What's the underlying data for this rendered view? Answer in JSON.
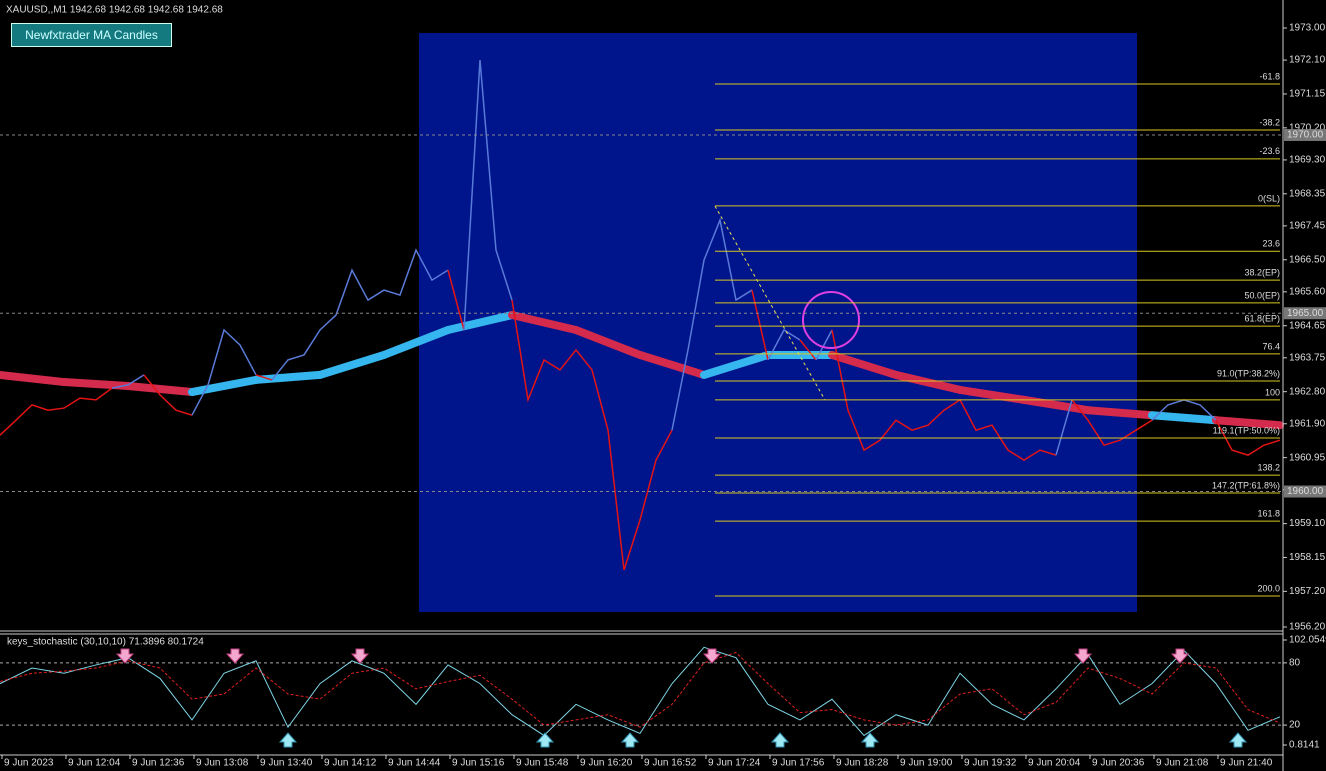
{
  "chart_data": [
    {
      "type": "line",
      "title": "XAUUSD,,M1  1942.68 1942.68 1942.68 1942.68",
      "indicator_button": "Newfxtrader MA Candles",
      "categories": [
        "9 Jun 2023",
        "9 Jun 12:04",
        "9 Jun 12:36",
        "9 Jun 13:08",
        "9 Jun 13:40",
        "9 Jun 14:12",
        "9 Jun 14:44",
        "9 Jun 15:16",
        "9 Jun 15:48",
        "9 Jun 16:20",
        "9 Jun 16:52",
        "9 Jun 17:24",
        "9 Jun 17:56",
        "9 Jun 18:28",
        "9 Jun 19:00",
        "9 Jun 19:32",
        "9 Jun 20:04",
        "9 Jun 20:36",
        "9 Jun 21:08",
        "9 Jun 21:40"
      ],
      "ylim": [
        1956.2,
        1973.0
      ],
      "yticks": [
        {
          "value": 1973.0,
          "label": "1973.00"
        },
        {
          "value": 1972.1,
          "label": "1972.10"
        },
        {
          "value": 1971.15,
          "label": "1971.15"
        },
        {
          "value": 1970.2,
          "label": "1970.20"
        },
        {
          "value": 1969.3,
          "label": "1969.30"
        },
        {
          "value": 1968.35,
          "label": "1968.35"
        },
        {
          "value": 1967.45,
          "label": "1967.45"
        },
        {
          "value": 1966.5,
          "label": "1966.50"
        },
        {
          "value": 1965.6,
          "label": "1965.60"
        },
        {
          "value": 1964.65,
          "label": "1964.65"
        },
        {
          "value": 1963.75,
          "label": "1963.75"
        },
        {
          "value": 1962.8,
          "label": "1962.80"
        },
        {
          "value": 1961.9,
          "label": "1961.90"
        },
        {
          "value": 1960.95,
          "label": "1960.95"
        },
        {
          "value": 1960.05,
          "label": "1960.05"
        },
        {
          "value": 1959.1,
          "label": "1959.10"
        },
        {
          "value": 1958.15,
          "label": "1958.15"
        },
        {
          "value": 1957.2,
          "label": "1957.20"
        },
        {
          "value": 1956.2,
          "label": "1956.20"
        }
      ],
      "price_lines": [
        {
          "value": 1970,
          "label": "1970.00"
        },
        {
          "value": 1965,
          "label": "1965.00"
        },
        {
          "value": 1960,
          "label": "1960.00"
        }
      ],
      "up_color": "#5a7ad8",
      "down_color": "#e41414",
      "ma_up_color": "#35b6ee",
      "ma_down_color": "#d42a4c",
      "price": [
        1961.58,
        1962.0,
        1962.43,
        1962.28,
        1962.34,
        1962.62,
        1962.57,
        1962.9,
        1962.99,
        1963.27,
        1962.71,
        1962.28,
        1962.14,
        1962.99,
        1964.53,
        1964.11,
        1963.27,
        1963.13,
        1963.69,
        1963.83,
        1964.53,
        1964.95,
        1966.21,
        1965.37,
        1965.65,
        1965.51,
        1966.77,
        1965.93,
        1966.21,
        1964.53,
        1972.1,
        1966.77,
        1965.37,
        1962.57,
        1963.69,
        1963.41,
        1963.97,
        1963.41,
        1961.72,
        1957.8,
        1959.2,
        1960.88,
        1961.72,
        1963.97,
        1966.49,
        1967.61,
        1965.37,
        1965.65,
        1963.69,
        1964.53,
        1964.25,
        1963.69,
        1964.53,
        1962.28,
        1961.16,
        1961.44,
        1962.0,
        1961.72,
        1961.86,
        1962.28,
        1962.57,
        1961.72,
        1961.86,
        1961.16,
        1960.88,
        1961.16,
        1961.02,
        1962.57,
        1962.0,
        1961.3,
        1961.44,
        1961.72,
        1962.0,
        1962.43,
        1962.57,
        1962.43,
        1962.0,
        1961.16,
        1961.02,
        1961.3,
        1961.44
      ],
      "ma": [
        1963.27,
        1963.07,
        1962.96,
        1962.79,
        1963.13,
        1963.27,
        1963.83,
        1964.53,
        1964.95,
        1964.53,
        1963.83,
        1963.27,
        1963.83,
        1963.83,
        1963.27,
        1962.85,
        1962.57,
        1962.28,
        1962.14,
        1962.0,
        1961.86
      ],
      "fib_levels": [
        {
          "label": "-61.8",
          "price": 1971.43
        },
        {
          "label": "-38.2",
          "price": 1970.14
        },
        {
          "label": "-23.6",
          "price": 1969.33
        },
        {
          "label": "0(SL)",
          "price": 1968.01
        },
        {
          "label": "23.6",
          "price": 1966.74
        },
        {
          "label": "38.2(EP)",
          "price": 1965.93
        },
        {
          "label": "50.0(EP)",
          "price": 1965.29
        },
        {
          "label": "61.8(EP)",
          "price": 1964.64
        },
        {
          "label": "76.4",
          "price": 1963.86
        },
        {
          "label": "91.0(TP:38.2%)",
          "price": 1963.1
        },
        {
          "label": "100",
          "price": 1962.57
        },
        {
          "label": "119.1(TP:50.0%)",
          "price": 1961.5
        },
        {
          "label": "138.2",
          "price": 1960.46
        },
        {
          "label": "147.2(TP:61.8%)",
          "price": 1959.96
        },
        {
          "label": "161.8",
          "price": 1959.17
        },
        {
          "label": "200.0",
          "price": 1957.07
        }
      ],
      "fib_color": "#d8c820"
    },
    {
      "type": "line",
      "title": "keys_stochastic (30,10,10) 71.3896 80.1724",
      "ylim": [
        0.8141,
        102.0549
      ],
      "yticks": [
        102.0549,
        80,
        20,
        0.8141
      ],
      "series": [
        {
          "color": "#7fd6e6",
          "values": [
            60,
            75,
            70,
            78,
            85,
            65,
            25,
            70,
            82,
            18,
            60,
            82,
            70,
            40,
            78,
            60,
            30,
            10,
            40,
            25,
            12,
            60,
            95,
            85,
            40,
            25,
            45,
            10,
            30,
            20,
            70,
            40,
            25,
            55,
            88,
            40,
            60,
            92,
            60,
            15,
            28
          ]
        },
        {
          "color": "#e02020",
          "dashed": true,
          "values": [
            62,
            70,
            72,
            75,
            82,
            75,
            45,
            50,
            75,
            50,
            45,
            70,
            75,
            55,
            62,
            68,
            45,
            20,
            25,
            30,
            18,
            40,
            80,
            90,
            60,
            32,
            35,
            25,
            20,
            25,
            50,
            55,
            30,
            42,
            75,
            65,
            50,
            80,
            75,
            35,
            22
          ]
        }
      ]
    }
  ]
}
